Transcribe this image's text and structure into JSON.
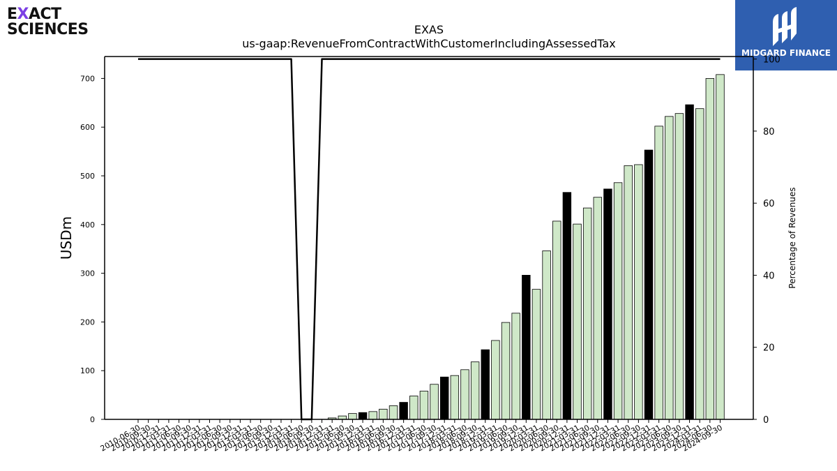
{
  "logos": {
    "left": {
      "line1_pre": "E",
      "line1_x": "X",
      "line1_post": "ACT",
      "line2": "SCIENCES"
    },
    "right": {
      "name": "MIDGARD FINANCE",
      "color": "#2f5fb0"
    }
  },
  "chart_data": {
    "type": "bar",
    "title": "EXAS",
    "subtitle": "us-gaap:RevenueFromContractWithCustomerIncludingAssessedTax",
    "ylabel": "USDm",
    "y2label": "Percentage of Revenues",
    "ylim": [
      0,
      745
    ],
    "y2lim": [
      0,
      100.7
    ],
    "yticks": [
      0,
      100,
      200,
      300,
      400,
      500,
      600,
      700
    ],
    "y2ticks": [
      0,
      20,
      40,
      60,
      80,
      100
    ],
    "grid": false,
    "colors": {
      "bar_fill": "#cfe8c8",
      "bar_annual": "#000000",
      "bar_edge": "#000000",
      "line": "#000000"
    },
    "categories": [
      "2010-06-30",
      "2010-09-30",
      "2010-12-31",
      "2011-03-31",
      "2011-06-30",
      "2011-09-30",
      "2011-12-31",
      "2012-03-31",
      "2012-06-30",
      "2012-09-30",
      "2012-12-31",
      "2013-03-31",
      "2013-06-30",
      "2013-09-30",
      "2013-12-31",
      "2014-03-31",
      "2014-06-30",
      "2014-09-30",
      "2014-12-31",
      "2015-03-31",
      "2015-06-30",
      "2015-09-30",
      "2015-12-31",
      "2016-03-31",
      "2016-06-30",
      "2016-09-30",
      "2016-12-31",
      "2017-03-31",
      "2017-06-30",
      "2017-09-30",
      "2017-12-31",
      "2018-03-31",
      "2018-06-30",
      "2018-09-30",
      "2018-12-31",
      "2019-03-31",
      "2019-06-30",
      "2019-09-30",
      "2019-12-31",
      "2020-03-31",
      "2020-06-30",
      "2020-09-30",
      "2020-12-31",
      "2021-03-31",
      "2021-06-30",
      "2021-09-30",
      "2021-12-31",
      "2022-03-31",
      "2022-06-30",
      "2022-09-30",
      "2022-12-31",
      "2023-03-31",
      "2023-06-30",
      "2023-09-30",
      "2023-12-31",
      "2024-03-31",
      "2024-06-30",
      "2024-09-30"
    ],
    "series": [
      {
        "type": "bar",
        "values": [
          0,
          0,
          0,
          0,
          0,
          0,
          0,
          0,
          0,
          0,
          0,
          0,
          0,
          0,
          0,
          0,
          0,
          0,
          0,
          3,
          7,
          12,
          14,
          16,
          21,
          28,
          35,
          48,
          58,
          72,
          87,
          90,
          102,
          118,
          143,
          162,
          199,
          218,
          296,
          267,
          346,
          407,
          466,
          401,
          434,
          456,
          473,
          486,
          521,
          523,
          553,
          602,
          622,
          628,
          646,
          638,
          700,
          708
        ],
        "annual": [
          0,
          0,
          0,
          0,
          0,
          0,
          0,
          0,
          0,
          0,
          0,
          0,
          0,
          0,
          0,
          0,
          0,
          0,
          0,
          0,
          0,
          0,
          1,
          0,
          0,
          0,
          1,
          0,
          0,
          0,
          1,
          0,
          0,
          0,
          1,
          0,
          0,
          0,
          1,
          0,
          0,
          0,
          1,
          0,
          0,
          0,
          1,
          0,
          0,
          0,
          1,
          0,
          0,
          0,
          1,
          0,
          0,
          0
        ]
      },
      {
        "type": "line",
        "axis": "right",
        "values": [
          100,
          100,
          100,
          100,
          100,
          100,
          100,
          100,
          100,
          100,
          100,
          100,
          100,
          100,
          100,
          100,
          0,
          0,
          100,
          100,
          100,
          100,
          100,
          100,
          100,
          100,
          100,
          100,
          100,
          100,
          100,
          100,
          100,
          100,
          100,
          100,
          100,
          100,
          100,
          100,
          100,
          100,
          100,
          100,
          100,
          100,
          100,
          100,
          100,
          100,
          100,
          100,
          100,
          100,
          100,
          100,
          100,
          100
        ]
      }
    ]
  }
}
